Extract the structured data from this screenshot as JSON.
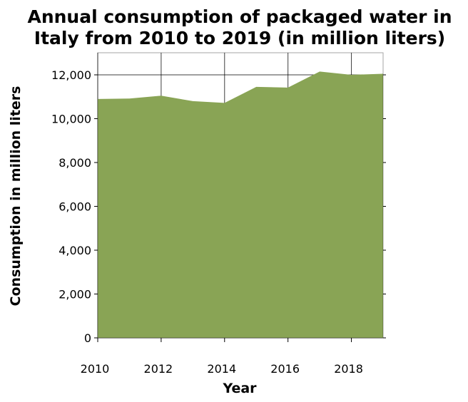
{
  "chart_data": {
    "type": "area",
    "title_lines": [
      "Annual consumption of packaged water in",
      "Italy from 2010 to 2019 (in million liters)"
    ],
    "xlabel": "Year",
    "ylabel": "Consumption in million liters",
    "x": [
      2010,
      2011,
      2012,
      2013,
      2014,
      2015,
      2016,
      2017,
      2018,
      2019
    ],
    "values": [
      10900,
      10920,
      11050,
      10800,
      10720,
      11450,
      11420,
      12150,
      12000,
      12050
    ],
    "xlim": [
      2010,
      2019
    ],
    "ylim": [
      0,
      12000
    ],
    "x_ticks": [
      2010,
      2012,
      2014,
      2016,
      2018
    ],
    "x_tick_labels": [
      "2010",
      "2012",
      "2014",
      "2016",
      "2018"
    ],
    "y_ticks": [
      0,
      2000,
      4000,
      6000,
      8000,
      10000,
      12000
    ],
    "y_tick_labels": [
      "0",
      "2,000",
      "4,000",
      "6,000",
      "8,000",
      "10,000",
      "12,000"
    ],
    "grid": true,
    "colors": {
      "fill": "#89a455",
      "background": "#ffffff",
      "grid": "#000000"
    }
  }
}
